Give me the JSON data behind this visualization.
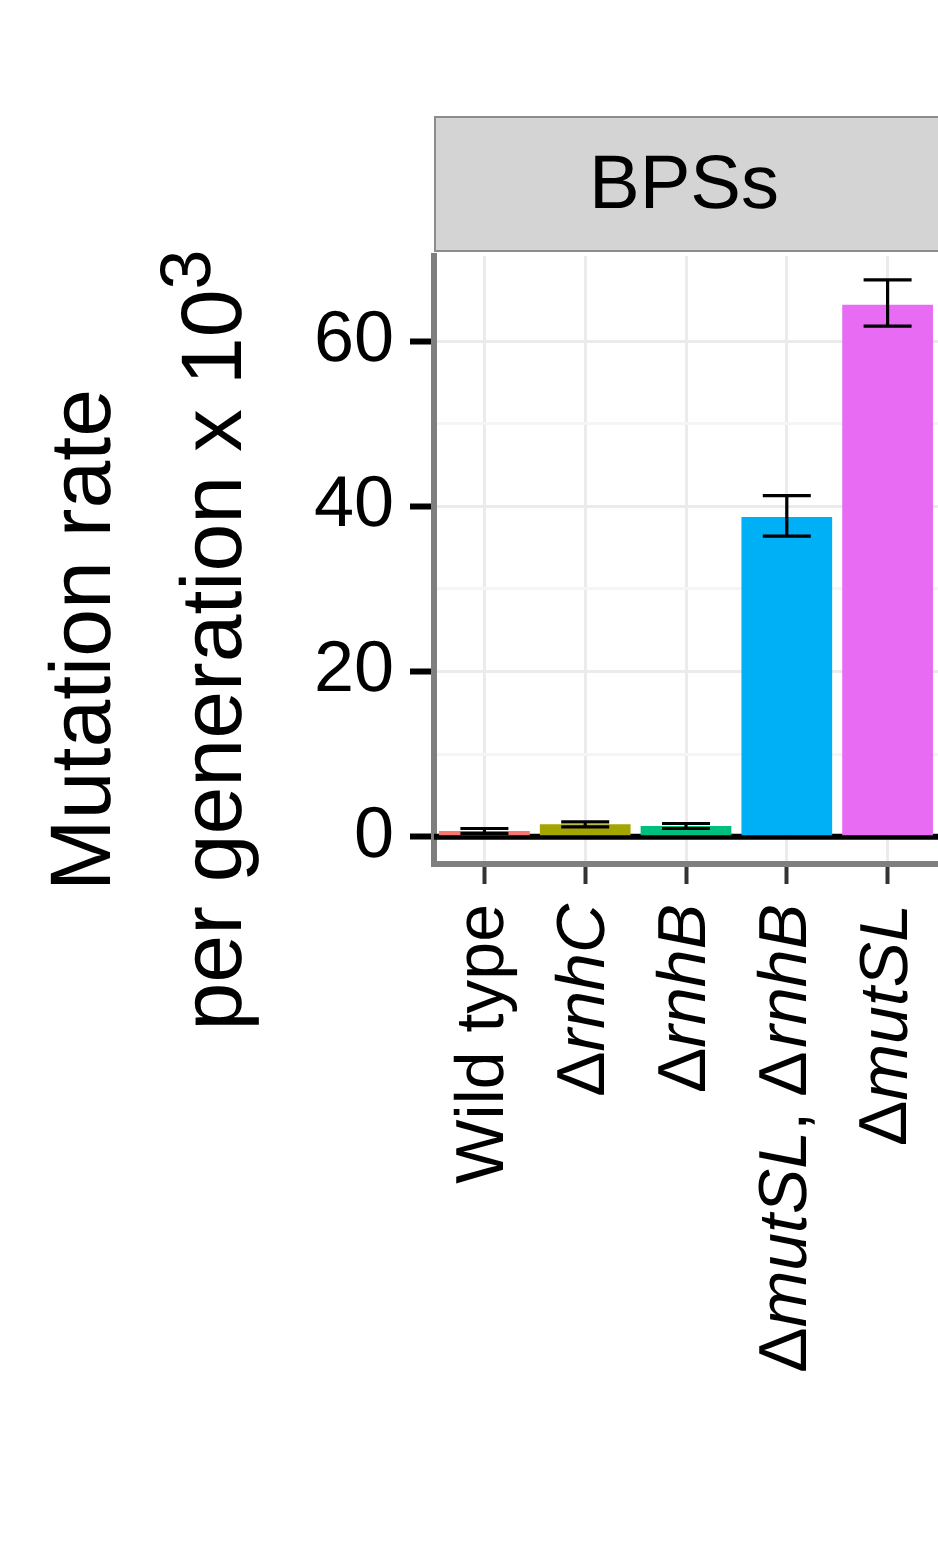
{
  "chart_data": {
    "type": "bar",
    "title": "BPSs",
    "ylabel": "Mutation rate\nper generation x 10$^{3}$",
    "categories": [
      "Wild type",
      "ΔrnhC",
      "ΔrnhB",
      "ΔmutSL, ΔrnhB",
      "ΔmutSL"
    ],
    "values": [
      0.7,
      1.5,
      1.3,
      38.7,
      64.4
    ],
    "errors": [
      0.3,
      0.3,
      0.3,
      [
        36.4,
        41.3
      ],
      [
        61.8,
        67.4
      ]
    ],
    "colors": [
      "#f8766d",
      "#a3a500",
      "#00bf7d",
      "#00b0f6",
      "#e76bf3"
    ],
    "ylim": [
      -3.3,
      70.3
    ],
    "yticks": [
      0,
      {
        "value": 10,
        "label": null
      },
      20,
      {
        "value": 30,
        "label": null
      },
      40,
      {
        "value": 50,
        "label": null
      },
      60
    ],
    "ref_lines": [
      {
        "axis": "y",
        "value": 0,
        "color": "#000000"
      }
    ],
    "grid": true,
    "legend": false
  }
}
